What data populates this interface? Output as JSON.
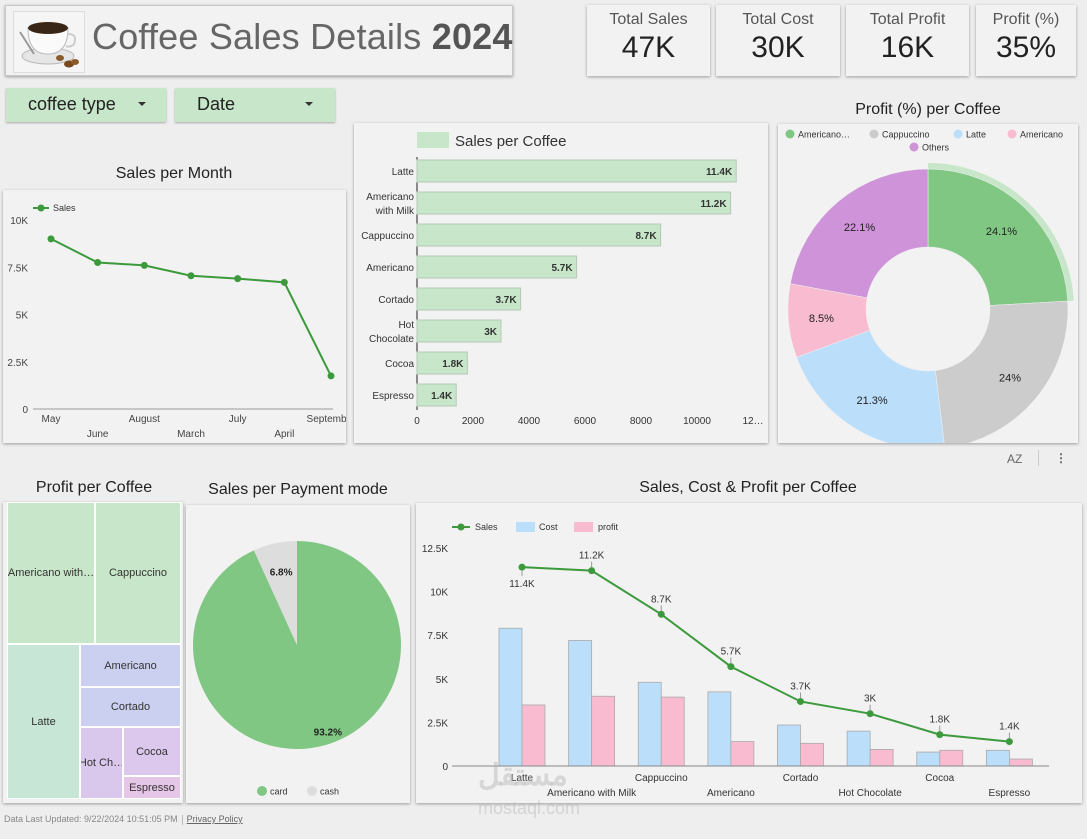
{
  "header": {
    "title_prefix": "Coffee Sales Details",
    "title_year": "2024",
    "logo_icon": "coffee-cup-icon"
  },
  "kpis": [
    {
      "label": "Total Sales",
      "value": "47K"
    },
    {
      "label": "Total Cost",
      "value": "30K"
    },
    {
      "label": "Total Profit",
      "value": "16K"
    },
    {
      "label": "Profit (%)",
      "value": "35%"
    }
  ],
  "filters": [
    {
      "label": "coffee type",
      "icon": "caret-down-icon"
    },
    {
      "label": "Date",
      "icon": "caret-down-icon"
    }
  ],
  "toolbar": {
    "sort_icon": "sort-az-icon",
    "sort_label": "AZ",
    "more_icon": "more-vert-icon",
    "more_label": "⋮"
  },
  "colors": {
    "green_line": "#3c9a3c",
    "green_fill": "#81c784",
    "green_light": "#c8e6c9",
    "blue_light": "#bbdefb",
    "pink_light": "#f8bbd0",
    "grey_light": "#cccccc",
    "purple": "#ce93d8"
  },
  "footer": {
    "updated": "Data Last Updated: 9/22/2024 10:51:05 PM",
    "privacy": "Privacy Policy"
  },
  "watermark": {
    "arabic": "مستقل",
    "latin": "mostaql.com"
  },
  "chart_data": [
    {
      "id": "sales_per_month",
      "type": "line",
      "title": "Sales per Month",
      "legend": [
        "Sales"
      ],
      "legend_position": "top-left",
      "categories": [
        "May",
        "June",
        "August",
        "March",
        "July",
        "April",
        "September"
      ],
      "series": [
        {
          "name": "Sales",
          "values": [
            9000,
            7750,
            7600,
            7050,
            6900,
            6700,
            1750
          ]
        }
      ],
      "yticks": [
        "0",
        "2.5K",
        "5K",
        "7.5K",
        "10K"
      ],
      "ylim": [
        0,
        10000
      ],
      "grid": false
    },
    {
      "id": "sales_per_coffee",
      "type": "bar",
      "orientation": "horizontal",
      "title": "Sales per Coffee",
      "legend": [
        "Sales per Coffee"
      ],
      "legend_position": "top",
      "categories": [
        "Latte",
        "Americano with Milk",
        "Cappuccino",
        "Americano",
        "Cortado",
        "Hot Chocolate",
        "Cocoa",
        "Espresso"
      ],
      "category_lines": [
        [
          "Latte"
        ],
        [
          "Americano",
          "with Milk"
        ],
        [
          "Cappuccino"
        ],
        [
          "Americano"
        ],
        [
          "Cortado"
        ],
        [
          "Hot",
          "Chocolate"
        ],
        [
          "Cocoa"
        ],
        [
          "Espresso"
        ]
      ],
      "values": [
        11400,
        11200,
        8700,
        5700,
        3700,
        3000,
        1800,
        1400
      ],
      "labels": [
        "11.4K",
        "11.2K",
        "8.7K",
        "5.7K",
        "3.7K",
        "3K",
        "1.8K",
        "1.4K"
      ],
      "xticks": [
        "0",
        "2000",
        "4000",
        "6000",
        "8000",
        "10000",
        "12…"
      ],
      "xlim": [
        0,
        12000
      ]
    },
    {
      "id": "profit_pct_per_coffee",
      "type": "pie",
      "donut": true,
      "title": "Profit (%) per Coffee",
      "legend": [
        "Americano…",
        "Cappuccino",
        "Latte",
        "Americano",
        "Others"
      ],
      "legend_position": "top",
      "slices": [
        {
          "name": "Americano with Milk",
          "value": 24.1,
          "label": "24.1%"
        },
        {
          "name": "Cappuccino",
          "value": 24.0,
          "label": "24%"
        },
        {
          "name": "Latte",
          "value": 21.3,
          "label": "21.3%"
        },
        {
          "name": "Americano",
          "value": 8.5,
          "label": "8.5%"
        },
        {
          "name": "Others",
          "value": 22.1,
          "label": "22.1%"
        }
      ],
      "highlighted": "Americano with Milk"
    },
    {
      "id": "profit_per_coffee",
      "type": "treemap",
      "title": "Profit per Coffee",
      "cells": [
        {
          "name": "Americano with Milk",
          "label": "Americano with…"
        },
        {
          "name": "Cappuccino",
          "label": "Cappuccino"
        },
        {
          "name": "Latte",
          "label": "Latte"
        },
        {
          "name": "Americano",
          "label": "Americano"
        },
        {
          "name": "Cortado",
          "label": "Cortado"
        },
        {
          "name": "Hot Chocolate",
          "label": "Hot Ch…"
        },
        {
          "name": "Cocoa",
          "label": "Cocoa"
        },
        {
          "name": "Espresso",
          "label": "Espresso"
        }
      ]
    },
    {
      "id": "sales_per_payment",
      "type": "pie",
      "title": "Sales per Payment mode",
      "legend": [
        "card",
        "cash"
      ],
      "legend_position": "bottom",
      "slices": [
        {
          "name": "card",
          "value": 93.2,
          "label": "93.2%"
        },
        {
          "name": "cash",
          "value": 6.8,
          "label": "6.8%"
        }
      ]
    },
    {
      "id": "sales_cost_profit",
      "type": "bar",
      "combo": true,
      "title": "Sales, Cost & Profit per Coffee",
      "legend": [
        "Sales",
        "Cost",
        "profit"
      ],
      "legend_position": "top-left",
      "categories": [
        "Latte",
        "Americano with Milk",
        "Cappuccino",
        "Americano",
        "Cortado",
        "Hot Chocolate",
        "Cocoa",
        "Espresso"
      ],
      "series": [
        {
          "name": "Sales",
          "type": "line",
          "values": [
            11400,
            11200,
            8700,
            5700,
            3700,
            3000,
            1800,
            1400
          ],
          "labels": [
            "11.4K",
            "11.2K",
            "8.7K",
            "5.7K",
            "3.7K",
            "3K",
            "1.8K",
            "1.4K"
          ]
        },
        {
          "name": "Cost",
          "type": "bar",
          "values": [
            7900,
            7200,
            4800,
            4250,
            2350,
            2000,
            800,
            900
          ]
        },
        {
          "name": "profit",
          "type": "bar",
          "values": [
            3500,
            4000,
            3950,
            1400,
            1300,
            950,
            900,
            400
          ]
        }
      ],
      "yticks": [
        "0",
        "2.5K",
        "5K",
        "7.5K",
        "10K",
        "12.5K"
      ],
      "ylim": [
        0,
        12500
      ]
    }
  ]
}
